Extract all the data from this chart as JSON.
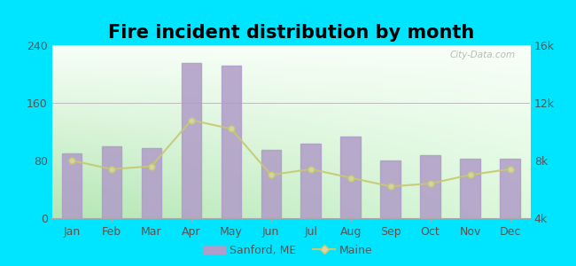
{
  "title": "Fire incident distribution by month",
  "months": [
    "Jan",
    "Feb",
    "Mar",
    "Apr",
    "May",
    "Jun",
    "Jul",
    "Aug",
    "Sep",
    "Oct",
    "Nov",
    "Dec"
  ],
  "sanford_values": [
    90,
    100,
    97,
    215,
    212,
    95,
    103,
    113,
    80,
    88,
    82,
    82
  ],
  "maine_values": [
    8000,
    7400,
    7600,
    10800,
    10200,
    7000,
    7400,
    6800,
    6200,
    6400,
    7000,
    7400
  ],
  "bar_color": "#b09cc8",
  "line_color": "#c8c870",
  "line_marker_color": "#d8d8a0",
  "outer_bg": "#00e5ff",
  "grad_top_color": "#f8fff8",
  "grad_bottom_color": "#c8f0c8",
  "ylim_left": [
    0,
    240
  ],
  "ylim_right": [
    4000,
    16000
  ],
  "yticks_left": [
    0,
    80,
    160,
    240
  ],
  "yticks_right": [
    4000,
    8000,
    12000,
    16000
  ],
  "ytick_labels_left": [
    "0",
    "80",
    "160",
    "240"
  ],
  "ytick_labels_right": [
    "4k",
    "8k",
    "12k",
    "16k"
  ],
  "legend_sanford_label": "Sanford, ME",
  "legend_maine_label": "Maine",
  "title_fontsize": 15,
  "axis_fontsize": 9,
  "legend_fontsize": 9,
  "watermark": "City-Data.com"
}
